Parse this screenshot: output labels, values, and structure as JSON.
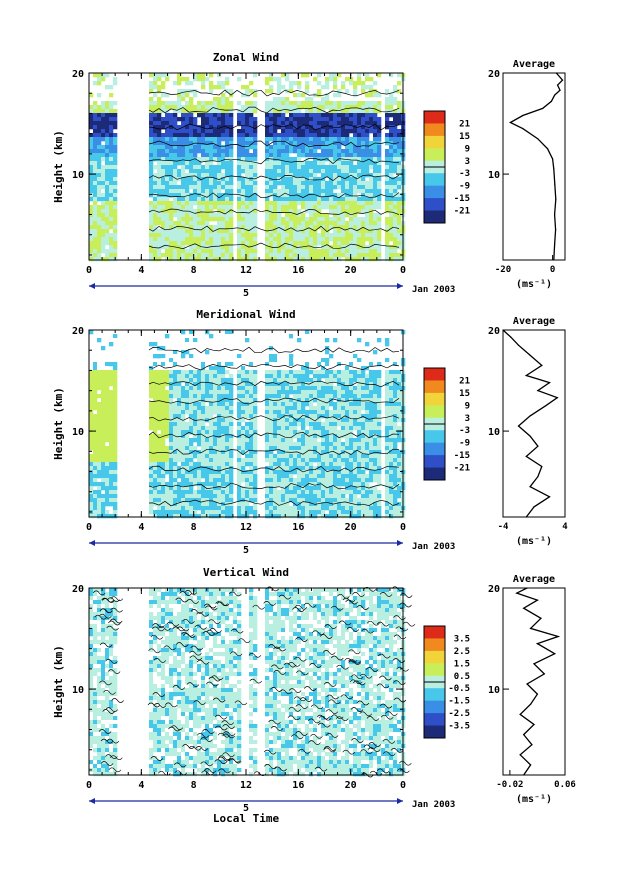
{
  "figure": {
    "x_axis_title": "Local Time",
    "day_label": "5",
    "date_label": "Jan 2003",
    "y_axis_title": "Height (km)",
    "x_ticks": [
      "0",
      "4",
      "8",
      "12",
      "16",
      "20",
      "0"
    ],
    "y_ticks": [
      "10",
      "20"
    ]
  },
  "chart_data": [
    {
      "type": "heatmap",
      "title": "Zonal Wind",
      "xlabel": "Local Time",
      "ylabel": "Height (km)",
      "xlim": [
        0,
        24
      ],
      "ylim": [
        1.5,
        20
      ],
      "unit": "(ms⁻¹)",
      "colorbar_ticks": [
        "21",
        "15",
        "9",
        "3",
        "-3",
        "-9",
        "-15",
        "-21"
      ],
      "data_gaps_hours": [
        [
          2.0,
          4.5
        ],
        [
          10.8,
          11.3
        ],
        [
          12.7,
          13.3
        ],
        [
          22.2,
          22.5
        ]
      ],
      "average_profile": {
        "title": "Average",
        "xlim": [
          -20,
          5
        ],
        "x_ticks": [
          "-20",
          "0"
        ],
        "xlabel": "(ms⁻¹)",
        "points": [
          [
            0.5,
            1.5
          ],
          [
            0.8,
            3
          ],
          [
            1.2,
            4.5
          ],
          [
            0.8,
            6
          ],
          [
            1.3,
            7.5
          ],
          [
            0.9,
            9
          ],
          [
            0.5,
            10.5
          ],
          [
            0,
            11.5
          ],
          [
            -2,
            12.5
          ],
          [
            -6,
            13.5
          ],
          [
            -12,
            14.5
          ],
          [
            -17,
            15.1
          ],
          [
            -12,
            15.8
          ],
          [
            -4,
            16.5
          ],
          [
            -0.5,
            17.2
          ],
          [
            0.8,
            17.8
          ],
          [
            3,
            18.3
          ],
          [
            2,
            18.8
          ],
          [
            4,
            19.3
          ],
          [
            1.5,
            20
          ]
        ]
      }
    },
    {
      "type": "heatmap",
      "title": "Meridional Wind",
      "xlabel": "Local Time",
      "ylabel": "Height (km)",
      "xlim": [
        0,
        24
      ],
      "ylim": [
        1.5,
        20
      ],
      "unit": "(ms⁻¹)",
      "colorbar_ticks": [
        "21",
        "15",
        "9",
        "3",
        "-3",
        "-9",
        "-15",
        "-21"
      ],
      "data_gaps_hours": [
        [
          2.0,
          4.5
        ],
        [
          10.8,
          11.3
        ],
        [
          12.7,
          13.3
        ],
        [
          22.2,
          22.5
        ]
      ],
      "average_profile": {
        "title": "Average",
        "xlim": [
          -4,
          4
        ],
        "x_ticks": [
          "-4",
          "4"
        ],
        "xlabel": "(ms⁻¹)",
        "points": [
          [
            -1,
            1.5
          ],
          [
            0,
            2.5
          ],
          [
            2,
            3.5
          ],
          [
            -0.5,
            4.5
          ],
          [
            0.5,
            5.5
          ],
          [
            1,
            6.5
          ],
          [
            -1,
            7.5
          ],
          [
            0.5,
            8.5
          ],
          [
            -0.5,
            9.5
          ],
          [
            -2,
            10.5
          ],
          [
            -0.5,
            11.5
          ],
          [
            1.5,
            12.5
          ],
          [
            3,
            13.3
          ],
          [
            0.5,
            14
          ],
          [
            2,
            14.8
          ],
          [
            -1,
            15.5
          ],
          [
            1,
            16.5
          ],
          [
            -0.5,
            17.5
          ],
          [
            -2,
            18.5
          ],
          [
            -3,
            19.3
          ],
          [
            -4,
            20
          ]
        ]
      }
    },
    {
      "type": "heatmap",
      "title": "Vertical Wind",
      "xlabel": "Local Time",
      "ylabel": "Height (km)",
      "xlim": [
        0,
        24
      ],
      "ylim": [
        1.5,
        20
      ],
      "unit": "(ms⁻¹)",
      "colorbar_ticks": [
        "3.5",
        "2.5",
        "1.5",
        "0.5",
        "-0.5",
        "-1.5",
        "-2.5",
        "-3.5"
      ],
      "data_gaps_hours": [
        [
          2.0,
          4.5
        ],
        [
          11.5,
          12.2
        ],
        [
          12.8,
          13.3
        ]
      ],
      "average_profile": {
        "title": "Average",
        "xlim": [
          -0.03,
          0.06
        ],
        "x_ticks": [
          "-0.02",
          "0.06"
        ],
        "xlabel": "(ms⁻¹)",
        "points": [
          [
            0,
            1.5
          ],
          [
            0.01,
            2.5
          ],
          [
            -0.005,
            3.5
          ],
          [
            0.012,
            4.5
          ],
          [
            0,
            5.5
          ],
          [
            0.015,
            6.5
          ],
          [
            -0.005,
            7.5
          ],
          [
            0.01,
            8.5
          ],
          [
            0.02,
            9.5
          ],
          [
            0.005,
            10.5
          ],
          [
            0.03,
            11.5
          ],
          [
            0.015,
            12.5
          ],
          [
            0.045,
            13.5
          ],
          [
            0.02,
            14.5
          ],
          [
            0.05,
            15.2
          ],
          [
            0.01,
            16
          ],
          [
            0.025,
            17
          ],
          [
            0,
            18
          ],
          [
            0.02,
            18.8
          ],
          [
            -0.01,
            19.5
          ],
          [
            0.005,
            20
          ]
        ]
      }
    }
  ],
  "colors": {
    "scale": [
      "#1c2a78",
      "#2f4fc8",
      "#3a8ee6",
      "#47c7ea",
      "#b8efe0",
      "#c8ef5a",
      "#f1d43a",
      "#f08a1e",
      "#de2a18"
    ]
  }
}
